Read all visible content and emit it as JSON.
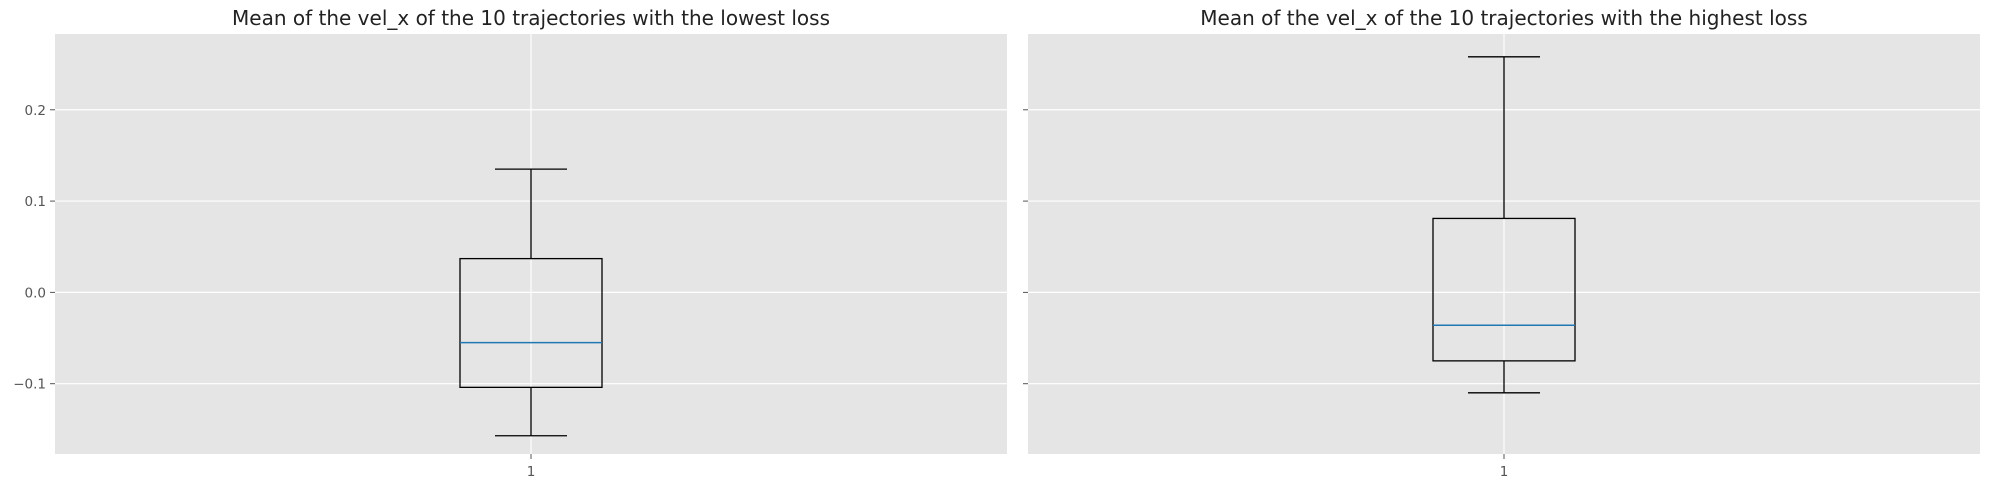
{
  "chart_data": [
    {
      "type": "box",
      "title": "Mean of the vel_x of the 10 trajectories with the lowest loss",
      "categories": [
        "1"
      ],
      "box": {
        "whisker_low": -0.157,
        "q1": -0.104,
        "median": -0.055,
        "q3": 0.037,
        "whisker_high": 0.135
      },
      "y_ticks": [
        "−0.1",
        "0.0",
        "0.1",
        "0.2"
      ],
      "ylim": [
        -0.177,
        0.283
      ],
      "grid": true
    },
    {
      "type": "box",
      "title": "Mean of the vel_x of the 10 trajectories with the highest loss",
      "categories": [
        "1"
      ],
      "box": {
        "whisker_low": -0.11,
        "q1": -0.075,
        "median": -0.036,
        "q3": 0.081,
        "whisker_high": 0.258
      },
      "y_ticks": [],
      "ylim": [
        -0.177,
        0.283
      ],
      "grid": true
    }
  ],
  "colors": {
    "axes_bg": "#e5e5e5",
    "grid": "#ffffff",
    "box": "#000000",
    "median": "#1f77b4",
    "tick_text": "#555555"
  }
}
